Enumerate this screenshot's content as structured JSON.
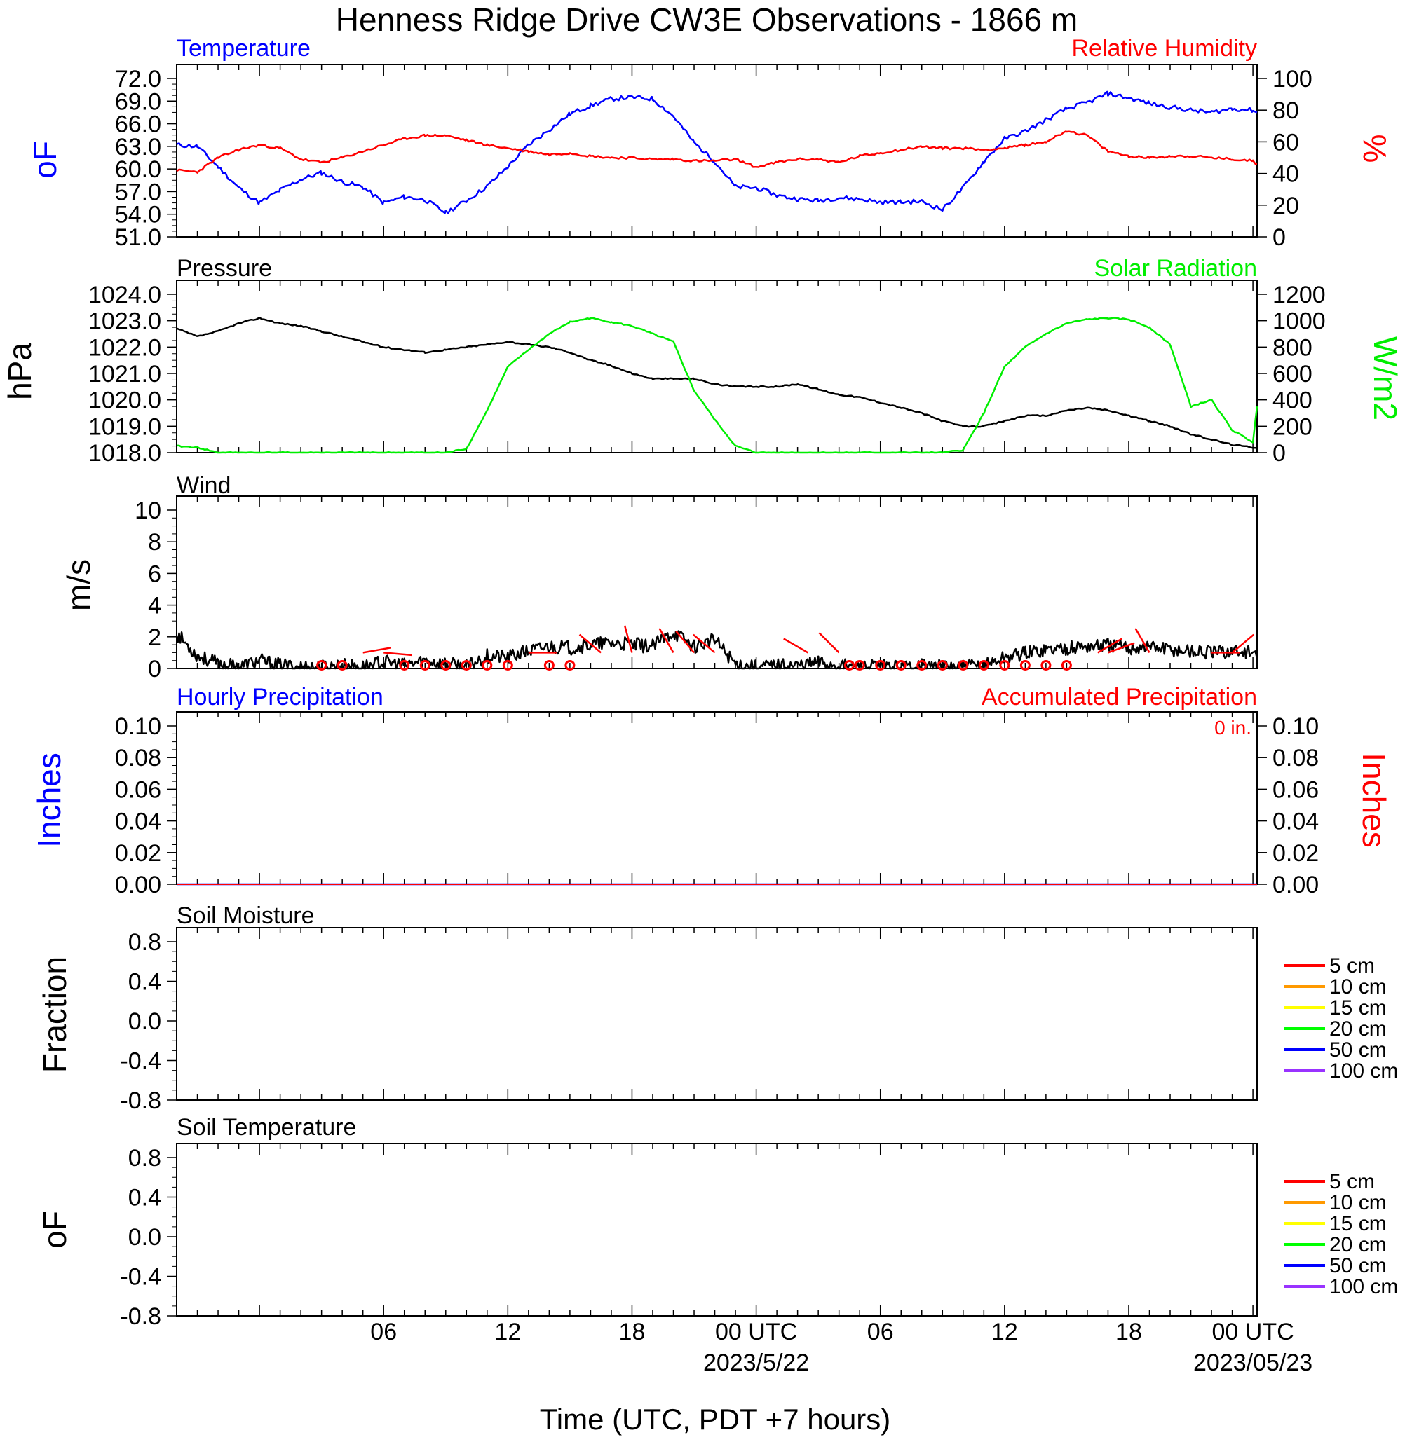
{
  "title": "Henness Ridge Drive CW3E Observations - 1866 m",
  "xlabel": "Time (UTC, PDT +7 hours)",
  "x_ticks": [
    {
      "hour": 6,
      "label": "06",
      "sub": ""
    },
    {
      "hour": 12,
      "label": "12",
      "sub": ""
    },
    {
      "hour": 18,
      "label": "18",
      "sub": ""
    },
    {
      "hour": 24,
      "label": "00 UTC",
      "sub": "2023/5/22"
    },
    {
      "hour": 30,
      "label": "06",
      "sub": ""
    },
    {
      "hour": 36,
      "label": "12",
      "sub": ""
    },
    {
      "hour": 42,
      "label": "18",
      "sub": ""
    },
    {
      "hour": 48,
      "label": "00 UTC",
      "sub": "2023/05/23"
    }
  ],
  "colors": {
    "blue": "#0000ff",
    "red": "#ff0000",
    "green": "#00ee00",
    "black": "#000000",
    "orange": "#ff9900",
    "yellow": "#ffff00",
    "green2": "#00ff00",
    "blue2": "#0000ff",
    "purple": "#9933ff"
  },
  "panels": {
    "temp": {
      "left_title": "Temperature",
      "right_title": "Relative Humidity",
      "left_unit": "oF",
      "right_unit": "%",
      "left_ticks": [
        "72.0",
        "69.0",
        "66.0",
        "63.0",
        "60.0",
        "57.0",
        "54.0",
        "51.0"
      ],
      "right_ticks": [
        "100",
        "80",
        "60",
        "40",
        "20",
        "0"
      ]
    },
    "pressure": {
      "left_title": "Pressure",
      "right_title": "Solar Radiation",
      "left_unit": "hPa",
      "right_unit": "W/m2",
      "left_ticks": [
        "1024.0",
        "1023.0",
        "1022.0",
        "1021.0",
        "1020.0",
        "1019.0",
        "1018.0"
      ],
      "right_ticks": [
        "1200",
        "1000",
        "800",
        "600",
        "400",
        "200",
        "0"
      ]
    },
    "wind": {
      "left_title": "Wind",
      "left_unit": "m/s",
      "left_ticks": [
        "10",
        "8",
        "6",
        "4",
        "2",
        "0"
      ]
    },
    "precip": {
      "left_title": "Hourly Precipitation",
      "right_title": "Accumulated Precipitation",
      "accum_label": "0 in.",
      "left_unit": "Inches",
      "right_unit": "Inches",
      "left_ticks": [
        "0.10",
        "0.08",
        "0.06",
        "0.04",
        "0.02",
        "0.00"
      ],
      "right_ticks": [
        "0.10",
        "0.08",
        "0.06",
        "0.04",
        "0.02",
        "0.00"
      ]
    },
    "soil_moisture": {
      "left_title": "Soil Moisture",
      "left_unit": "Fraction",
      "left_ticks": [
        "0.8",
        "0.4",
        "0.0",
        "-0.4",
        "-0.8"
      ]
    },
    "soil_temp": {
      "left_title": "Soil Temperature",
      "left_unit": "oF",
      "left_ticks": [
        "0.8",
        "0.4",
        "0.0",
        "-0.4",
        "-0.8"
      ]
    }
  },
  "soil_legend": [
    {
      "label": "5 cm",
      "color": "#ff0000"
    },
    {
      "label": "10 cm",
      "color": "#ff9900"
    },
    {
      "label": "15 cm",
      "color": "#ffff00"
    },
    {
      "label": "20 cm",
      "color": "#00ff00"
    },
    {
      "label": "50 cm",
      "color": "#0000ff"
    },
    {
      "label": "100 cm",
      "color": "#9933ff"
    }
  ],
  "chart_data": [
    {
      "type": "line",
      "panel": "temp",
      "xlim_hours": [
        -4,
        48.2
      ],
      "ylim_left": [
        51,
        72
      ],
      "ylim_right": [
        0,
        100
      ],
      "series": [
        {
          "name": "Temperature",
          "axis": "left",
          "color": "#0000ff",
          "x": [
            -4,
            -3,
            -2,
            -1,
            0,
            1,
            2,
            3,
            4,
            5,
            6,
            7,
            8,
            9,
            10,
            11,
            12,
            13,
            14,
            15,
            16,
            17,
            18,
            19,
            20,
            21,
            22,
            23,
            24,
            25,
            26,
            27,
            28,
            29,
            30,
            31,
            32,
            33,
            34,
            35,
            36,
            37,
            38,
            39,
            40,
            41,
            42,
            43,
            44,
            45,
            46,
            47,
            48,
            48.2
          ],
          "y": [
            63.2,
            63,
            60.3,
            57.5,
            55.5,
            57.2,
            58.6,
            59.5,
            58.3,
            57.6,
            55.5,
            56.3,
            55.9,
            54.2,
            55.8,
            57.7,
            60.3,
            63.2,
            65.2,
            67.3,
            68.4,
            69.3,
            69.5,
            69.3,
            67.0,
            63.5,
            61.0,
            57.6,
            57.5,
            56.5,
            56.0,
            55.8,
            56.2,
            56.0,
            55.6,
            55.6,
            55.7,
            54.6,
            57.5,
            61.0,
            64.0,
            65.0,
            66.5,
            68.0,
            68.8,
            70.0,
            69.4,
            68.7,
            68.2,
            67.8,
            67.5,
            68.0,
            67.8,
            67.5
          ]
        },
        {
          "name": "Relative Humidity",
          "axis": "right",
          "color": "#ff0000",
          "x": [
            -4,
            -3,
            -2,
            -1,
            0,
            1,
            2,
            3,
            4,
            5,
            6,
            7,
            8,
            9,
            10,
            11,
            12,
            13,
            14,
            15,
            16,
            17,
            18,
            19,
            20,
            21,
            22,
            23,
            24,
            25,
            26,
            27,
            28,
            29,
            30,
            31,
            32,
            33,
            34,
            35,
            36,
            37,
            38,
            39,
            40,
            41,
            42,
            43,
            44,
            45,
            46,
            47,
            48,
            48.2
          ],
          "y": [
            42,
            41,
            50,
            55,
            58,
            56,
            49,
            47,
            50,
            54,
            58,
            62,
            64,
            64,
            61,
            58,
            56,
            54,
            52,
            53,
            51,
            50,
            50,
            49,
            49,
            48,
            48,
            49,
            44,
            47,
            49,
            49,
            47,
            51,
            53,
            55,
            57,
            56,
            56,
            55,
            56,
            58,
            60,
            67,
            64,
            54,
            51,
            50,
            51,
            51,
            50,
            49,
            48,
            46
          ]
        },
        {
          "name": "Pressure",
          "axis": "left",
          "panel": "pressure",
          "color": "#000000",
          "ylim": [
            1018,
            1024
          ],
          "x": [
            -4,
            -3,
            -2,
            -1,
            0,
            1,
            2,
            3,
            4,
            5,
            6,
            7,
            8,
            9,
            10,
            11,
            12,
            13,
            14,
            15,
            16,
            17,
            18,
            19,
            20,
            21,
            22,
            23,
            24,
            25,
            26,
            27,
            28,
            29,
            30,
            31,
            32,
            33,
            34,
            35,
            36,
            37,
            38,
            39,
            40,
            41,
            42,
            43,
            44,
            45,
            46,
            47,
            48,
            48.2
          ],
          "y": [
            1022.7,
            1022.4,
            1022.6,
            1022.9,
            1023.1,
            1022.9,
            1022.8,
            1022.6,
            1022.4,
            1022.2,
            1022.0,
            1021.9,
            1021.8,
            1021.9,
            1022.0,
            1022.1,
            1022.2,
            1022.1,
            1022.0,
            1021.8,
            1021.5,
            1021.3,
            1021.0,
            1020.8,
            1020.8,
            1020.8,
            1020.6,
            1020.5,
            1020.5,
            1020.5,
            1020.6,
            1020.4,
            1020.2,
            1020.1,
            1019.9,
            1019.7,
            1019.5,
            1019.2,
            1019.0,
            1019.0,
            1019.2,
            1019.4,
            1019.4,
            1019.6,
            1019.7,
            1019.6,
            1019.4,
            1019.2,
            1019.0,
            1018.7,
            1018.5,
            1018.3,
            1018.2,
            1018.2
          ]
        },
        {
          "name": "Solar Radiation",
          "axis": "right",
          "panel": "pressure",
          "color": "#00ee00",
          "ylim": [
            0,
            1200
          ],
          "x": [
            -4,
            -3,
            -2,
            -1,
            0,
            1,
            2,
            3,
            4,
            5,
            6,
            7,
            8,
            9,
            10,
            11,
            12,
            13,
            14,
            15,
            16,
            17,
            18,
            19,
            20,
            21,
            22,
            23,
            24,
            25,
            26,
            27,
            28,
            29,
            30,
            31,
            32,
            33,
            34,
            35,
            36,
            37,
            38,
            39,
            40,
            41,
            42,
            43,
            44,
            45,
            46,
            47,
            48,
            48.2
          ],
          "y": [
            50,
            40,
            0,
            0,
            0,
            0,
            0,
            0,
            0,
            0,
            0,
            0,
            0,
            0,
            30,
            320,
            650,
            780,
            900,
            990,
            1020,
            990,
            960,
            900,
            840,
            470,
            250,
            50,
            0,
            0,
            0,
            0,
            0,
            0,
            0,
            0,
            0,
            0,
            20,
            300,
            650,
            800,
            900,
            980,
            1010,
            1020,
            1010,
            950,
            820,
            350,
            400,
            170,
            80,
            350
          ]
        }
      ]
    },
    {
      "type": "line",
      "panel": "wind",
      "ylim": [
        0,
        10
      ],
      "series": [
        {
          "name": "Wind",
          "color": "#000000",
          "x": [
            -4,
            -3,
            -2,
            -1,
            0,
            1,
            2,
            3,
            4,
            5,
            6,
            7,
            8,
            9,
            10,
            11,
            12,
            13,
            14,
            15,
            16,
            17,
            18,
            19,
            20,
            21,
            22,
            23,
            24,
            25,
            26,
            27,
            28,
            29,
            30,
            31,
            32,
            33,
            34,
            35,
            36,
            37,
            38,
            39,
            40,
            41,
            42,
            43,
            44,
            45,
            46,
            47,
            48,
            48.2
          ],
          "y": [
            2.2,
            0.8,
            0.3,
            0.1,
            0.5,
            0.2,
            0.1,
            0.1,
            0.2,
            0.1,
            0.4,
            0.2,
            0.5,
            0.3,
            0.1,
            0.8,
            0.7,
            1.1,
            1.4,
            1.3,
            1.5,
            1.6,
            1.5,
            1.4,
            2.3,
            1.4,
            1.8,
            0.3,
            0.1,
            0.2,
            0.2,
            0.4,
            0.2,
            0.1,
            0.1,
            0.1,
            0.2,
            0.1,
            0.1,
            0.2,
            0.7,
            1.0,
            1.2,
            1.3,
            1.4,
            1.5,
            1.3,
            1.4,
            1.2,
            1.1,
            1.0,
            1.1,
            1.0,
            0.9
          ]
        }
      ]
    },
    {
      "type": "line",
      "panel": "precip",
      "ylim": [
        0,
        0.1
      ],
      "series": [
        {
          "name": "Hourly Precipitation",
          "color": "#0000ff",
          "x": [
            -4,
            48.2
          ],
          "y": [
            0,
            0
          ]
        },
        {
          "name": "Accumulated Precipitation",
          "color": "#ff0000",
          "x": [
            -4,
            48.2
          ],
          "y": [
            0,
            0
          ]
        }
      ]
    }
  ]
}
